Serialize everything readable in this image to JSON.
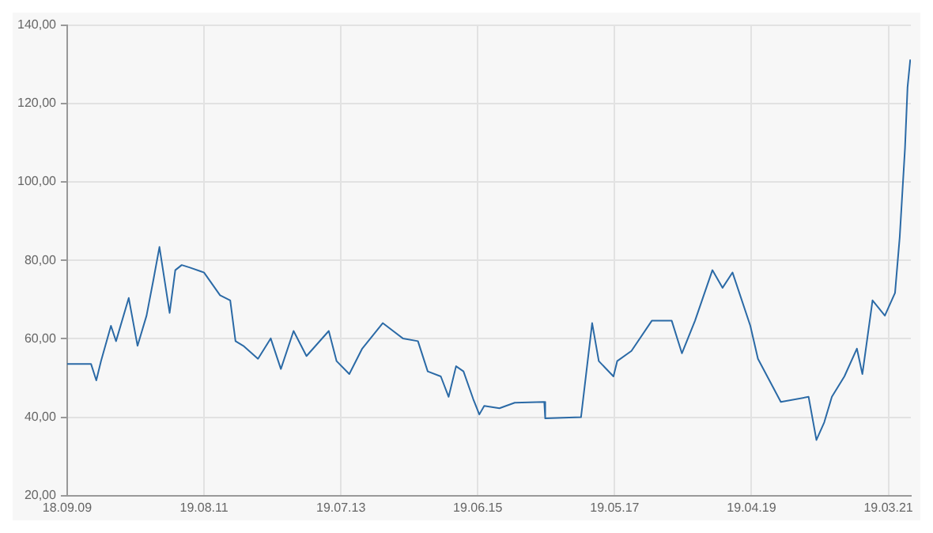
{
  "chart_data": {
    "type": "line",
    "x": [
      "2009-09-18",
      "2010-01-18",
      "2010-02-14",
      "2010-03-10",
      "2010-04-30",
      "2010-05-26",
      "2010-07-30",
      "2010-09-13",
      "2010-10-29",
      "2010-12-03",
      "2011-01-03",
      "2011-02-24",
      "2011-03-25",
      "2011-04-27",
      "2011-06-05",
      "2011-08-19",
      "2011-11-09",
      "2011-12-31",
      "2012-01-27",
      "2012-03-07",
      "2012-05-21",
      "2012-07-25",
      "2012-09-15",
      "2012-11-19",
      "2013-01-24",
      "2013-05-18",
      "2013-06-27",
      "2013-08-31",
      "2013-11-05",
      "2014-02-18",
      "2014-06-01",
      "2014-08-17",
      "2014-10-06",
      "2014-12-12",
      "2015-01-21",
      "2015-02-28",
      "2015-04-07",
      "2015-05-27",
      "2015-06-27",
      "2015-07-22",
      "2015-10-08",
      "2015-12-25",
      "2016-05-24",
      "2016-05-29",
      "2016-11-28",
      "2017-01-24",
      "2017-02-27",
      "2017-05-13",
      "2017-06-01",
      "2017-08-13",
      "2017-11-25",
      "2018-03-07",
      "2018-04-28",
      "2018-07-04",
      "2018-10-01",
      "2018-11-22",
      "2019-01-12",
      "2019-04-13",
      "2019-05-22",
      "2019-09-16",
      "2020-02-05",
      "2020-03-16",
      "2020-04-25",
      "2020-06-03",
      "2020-08-06",
      "2020-10-09",
      "2020-11-06",
      "2020-12-28",
      "2021-03-01",
      "2021-04-22",
      "2021-05-16",
      "2021-06-12",
      "2021-06-25",
      "2021-07-09"
    ],
    "series": [
      {
        "color": "#2b6aa6",
        "values": [
          53.6,
          53.6,
          49.4,
          54.3,
          63.3,
          59.4,
          70.4,
          58.2,
          65.9,
          75,
          83.4,
          66.6,
          77.5,
          78.8,
          78.2,
          76.9,
          71.1,
          69.8,
          59.4,
          58.2,
          54.9,
          60.1,
          52.3,
          62,
          55.6,
          62,
          54.3,
          51,
          57.5,
          64,
          60.1,
          59.4,
          51.7,
          50.4,
          45.2,
          53,
          51.7,
          44.6,
          40.7,
          42.9,
          42.3,
          43.7,
          43.9,
          39.7,
          40,
          64,
          54.3,
          50.4,
          54.3,
          56.9,
          64.6,
          64.6,
          56.3,
          64.6,
          77.5,
          73,
          76.9,
          63.3,
          54.9,
          43.9,
          45.2,
          34.2,
          38.7,
          45.2,
          50.4,
          57.5,
          51,
          69.8,
          65.9,
          71.7,
          85.9,
          108.6,
          124.1,
          131.2
        ]
      }
    ],
    "xlim": [
      "2009-09-18",
      "2021-07-12"
    ],
    "xticks": [
      {
        "value": "2009-09-18",
        "label": "18.09.09"
      },
      {
        "value": "2011-08-19",
        "label": "19.08.11"
      },
      {
        "value": "2013-07-19",
        "label": "19.07.13"
      },
      {
        "value": "2015-06-19",
        "label": "19.06.15"
      },
      {
        "value": "2017-05-19",
        "label": "19.05.17"
      },
      {
        "value": "2019-04-19",
        "label": "19.04.19"
      },
      {
        "value": "2021-03-19",
        "label": "19.03.21"
      }
    ],
    "ylim": [
      20,
      140
    ],
    "yticks": [
      {
        "value": 20,
        "label": "20,00"
      },
      {
        "value": 40,
        "label": "40,00"
      },
      {
        "value": 60,
        "label": "60,00"
      },
      {
        "value": 80,
        "label": "80,00"
      },
      {
        "value": 100,
        "label": "100,00"
      },
      {
        "value": 120,
        "label": "120,00"
      },
      {
        "value": 140,
        "label": "140,00"
      }
    ],
    "grid": true,
    "legend": false,
    "marker": "none",
    "line_style": "solid"
  }
}
